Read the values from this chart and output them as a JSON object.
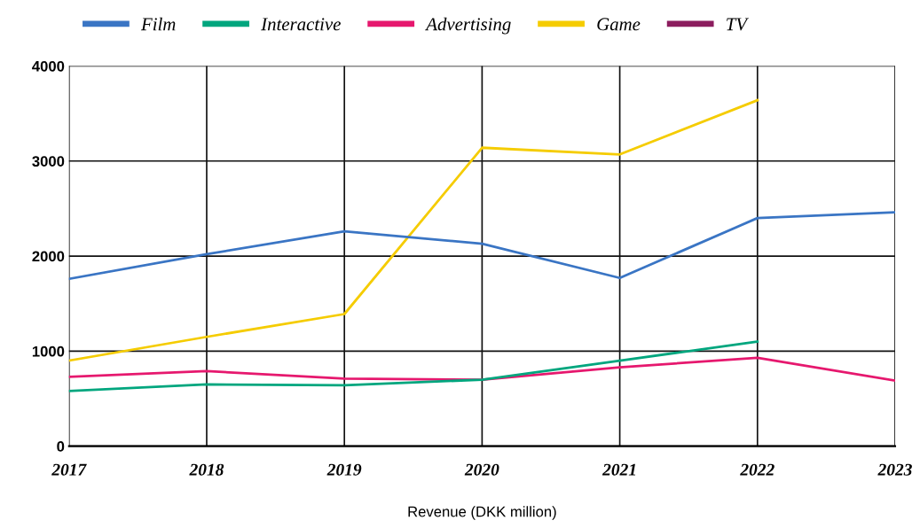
{
  "chart_data": {
    "type": "line",
    "xlabel": "Revenue (DKK million)",
    "categories": [
      "2017",
      "2018",
      "2019",
      "2020",
      "2021",
      "2022",
      "2023"
    ],
    "series": [
      {
        "name": "Film",
        "color": "#3a75c4",
        "values": [
          1760,
          2020,
          2260,
          2130,
          1770,
          2400,
          2460
        ]
      },
      {
        "name": "Interactive",
        "color": "#00a67e",
        "values": [
          580,
          650,
          640,
          700,
          900,
          1100,
          null
        ]
      },
      {
        "name": "Advertising",
        "color": "#e6186e",
        "values": [
          730,
          790,
          710,
          700,
          830,
          930,
          690
        ]
      },
      {
        "name": "Game",
        "color": "#f5cc00",
        "values": [
          900,
          1150,
          1390,
          3140,
          3070,
          3640,
          null
        ]
      },
      {
        "name": "TV",
        "color": "#8c1d5e",
        "values": [
          null,
          null,
          null,
          null,
          null,
          null,
          null
        ]
      }
    ],
    "ylim": [
      0,
      4000
    ],
    "yticks": [
      0,
      1000,
      2000,
      3000,
      4000
    ],
    "grid": true,
    "legend": "top",
    "marker": "none",
    "line_style": "solid"
  }
}
